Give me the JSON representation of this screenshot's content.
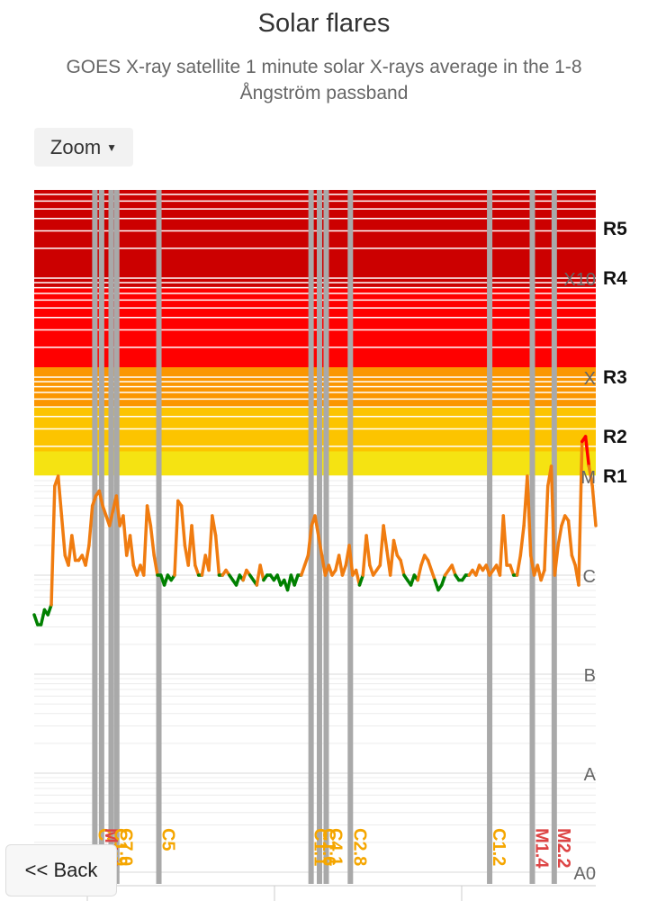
{
  "header": {
    "title": "Solar flares",
    "subtitle": "GOES X-ray satellite 1 minute solar X-rays average in the 1-8 Ångström passband"
  },
  "controls": {
    "zoom_label": "Zoom",
    "back_label": "<< Back"
  },
  "chart_data": {
    "type": "line",
    "title": "Solar flares",
    "subtitle": "GOES X-ray satellite 1 minute solar X-rays average in the 1-8 Ångström passband",
    "y_scale": "log",
    "y_tick_labels": [
      "A0",
      "A",
      "B",
      "C",
      "M",
      "X",
      "X10"
    ],
    "y_ticks_exponent": [
      -9,
      -8,
      -7,
      -6,
      -5,
      -4,
      -3
    ],
    "radio_blackout_levels": [
      {
        "label": "R1",
        "exponent": -5.0
      },
      {
        "label": "R2",
        "exponent": -4.6
      },
      {
        "label": "R3",
        "exponent": -4.0
      },
      {
        "label": "R4",
        "exponent": -3.0
      },
      {
        "label": "R5",
        "exponent": -2.5
      }
    ],
    "band_colors": {
      "R1": "#f5e312",
      "R2": "#fcc400",
      "R3": "#fb9600",
      "R4": "#ff0000",
      "R5": "#cc0000"
    },
    "line_colors": {
      "A_B": "#1a9c1a",
      "C": "#008000",
      "C_elevated": "#f07c10",
      "M": "#f07c10",
      "X": "#ff0000"
    },
    "flare_label_colors": {
      "C": "#f5a600",
      "M": "#dd4444"
    },
    "flares": [
      {
        "x": 0.108,
        "label": "C"
      },
      {
        "x": 0.12,
        "label": "M1.3"
      },
      {
        "x": 0.137,
        "label": "C1.9"
      },
      {
        "x": 0.147,
        "label": "C7.0"
      },
      {
        "x": 0.222,
        "label": "C5"
      },
      {
        "x": 0.493,
        "label": "C1.1"
      },
      {
        "x": 0.508,
        "label": "C1.6"
      },
      {
        "x": 0.52,
        "label": "C4.1"
      },
      {
        "x": 0.563,
        "label": "C2.8"
      },
      {
        "x": 0.811,
        "label": "C1.2"
      },
      {
        "x": 0.887,
        "label": "M1.4"
      },
      {
        "x": 0.926,
        "label": "M2.2"
      }
    ],
    "series": [
      {
        "y_exponent": [
          -6.4,
          -6.5,
          -6.5,
          -6.35,
          -6.4,
          -6.3,
          -5.1,
          -5.0,
          -5.4,
          -5.8,
          -5.9,
          -5.6,
          -5.85,
          -5.85,
          -5.8,
          -5.9,
          -5.7,
          -5.3,
          -5.2,
          -5.15,
          -5.3,
          -5.4,
          -5.5,
          -5.35,
          -5.2,
          -5.5,
          -5.4,
          -5.8,
          -5.6,
          -5.9,
          -6.0,
          -5.9,
          -6.0,
          -5.3,
          -5.5,
          -5.8,
          -6.0,
          -6.0,
          -6.1,
          -6.0,
          -6.05,
          -6.0,
          -5.25,
          -5.3,
          -5.7,
          -5.9,
          -5.5,
          -5.9,
          -6.0,
          -6.0,
          -5.8,
          -5.95,
          -5.4,
          -5.6,
          -6.0,
          -6.0,
          -5.95,
          -6.0,
          -6.05,
          -6.1,
          -6.0,
          -6.05,
          -5.95,
          -6.0,
          -6.05,
          -6.1,
          -5.9,
          -6.05,
          -6.0,
          -6.0,
          -6.05,
          -6.0,
          -6.1,
          -6.05,
          -6.15,
          -6.0,
          -6.1,
          -6.0,
          -6.0,
          -5.9,
          -5.8,
          -5.5,
          -5.4,
          -5.6,
          -5.8,
          -6.0,
          -5.9,
          -6.0,
          -5.95,
          -5.8,
          -6.0,
          -5.9,
          -5.7,
          -6.0,
          -5.95,
          -6.1,
          -6.0,
          -5.6,
          -5.9,
          -6.0,
          -5.95,
          -5.9,
          -5.5,
          -5.75,
          -6.0,
          -5.65,
          -5.8,
          -5.85,
          -6.0,
          -6.05,
          -6.1,
          -6.0,
          -6.05,
          -5.9,
          -5.8,
          -5.85,
          -5.95,
          -6.05,
          -6.15,
          -6.1,
          -6.0,
          -5.95,
          -5.9,
          -6.0,
          -6.05,
          -6.05,
          -6.0,
          -6.0,
          -5.95,
          -6.0,
          -5.9,
          -5.95,
          -5.9,
          -6.0,
          -5.95,
          -5.9,
          -6.0,
          -5.4,
          -5.9,
          -5.9,
          -6.0,
          -6.0,
          -5.8,
          -5.5,
          -5.0,
          -5.8,
          -6.0,
          -5.9,
          -6.05,
          -5.95,
          -5.1,
          -4.9,
          -6.0,
          -5.7,
          -5.5,
          -5.4,
          -5.45,
          -5.8,
          -5.9,
          -6.1,
          -4.65,
          -4.6,
          -4.9,
          -5.1,
          -5.5
        ]
      }
    ]
  }
}
